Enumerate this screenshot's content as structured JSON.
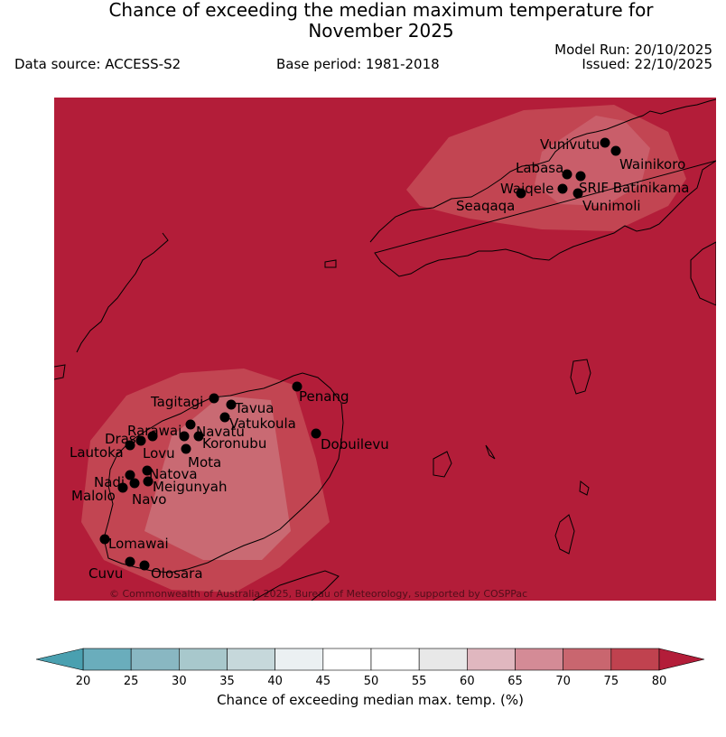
{
  "header": {
    "title_line1": "Chance of exceeding the median maximum temperature for",
    "title_line2": "November 2025",
    "data_source": "Data source: ACCESS-S2",
    "base_period": "Base period: 1981-2018",
    "model_run": "Model Run: 20/10/2025",
    "issued": "Issued: 22/10/2025"
  },
  "map": {
    "region": "Fiji",
    "background_color": "#b31d39",
    "copyright": "© Commonwealth of Australia 2025, Bureau of Meteorology, supported by COSPPac",
    "stations": [
      {
        "name": "Vunivutu"
      },
      {
        "name": "Wainikoro"
      },
      {
        "name": "Labasa"
      },
      {
        "name": "SRIF Batinikama"
      },
      {
        "name": "Waiqele"
      },
      {
        "name": "Seaqaqa"
      },
      {
        "name": "Vunimoli"
      },
      {
        "name": "Penang"
      },
      {
        "name": "Tagitagi"
      },
      {
        "name": "Tavua"
      },
      {
        "name": "Vatukoula"
      },
      {
        "name": "Rarawai"
      },
      {
        "name": "Navatu"
      },
      {
        "name": "Drasa"
      },
      {
        "name": "Koronubu"
      },
      {
        "name": "Lautoka"
      },
      {
        "name": "Lovu"
      },
      {
        "name": "Dobuilevu"
      },
      {
        "name": "Mota"
      },
      {
        "name": "Natova"
      },
      {
        "name": "Nadi"
      },
      {
        "name": "Meigunyah"
      },
      {
        "name": "Malolo"
      },
      {
        "name": "Navo"
      },
      {
        "name": "Lomawai"
      },
      {
        "name": "Cuvu"
      },
      {
        "name": "Olosara"
      }
    ]
  },
  "colorbar": {
    "label": "Chance of exceeding median max. temp. (%)",
    "ticks": [
      "20",
      "25",
      "30",
      "35",
      "40",
      "45",
      "50",
      "55",
      "60",
      "65",
      "70",
      "75",
      "80"
    ],
    "colors": [
      "#6aadbc",
      "#89b7c2",
      "#a8c8cc",
      "#c6d8db",
      "#ebf0f2",
      "#ffffff",
      "#ffffff",
      "#e8e8e8",
      "#e0b7bf",
      "#d48b96",
      "#c9666f",
      "#c0424f"
    ],
    "low_extend_color": "#4aa0b0",
    "high_extend_color": "#b31d39"
  }
}
